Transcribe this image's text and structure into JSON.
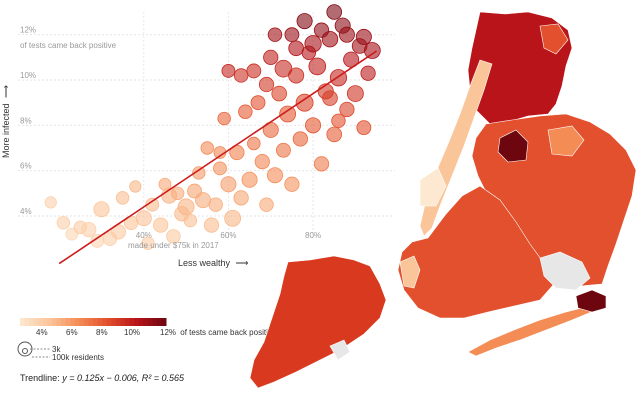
{
  "colors": {
    "scale": [
      "#fde8d2",
      "#fbc59a",
      "#f48c56",
      "#e2502d",
      "#b8141a",
      "#6e0610"
    ],
    "trendline": "#cc1d1d",
    "gridline": "#e6e6e6",
    "map_no_data": "#e7e7e7"
  },
  "chart_data": {
    "type": "scatter",
    "y_axis": {
      "label": "More infected",
      "arrow": "⟶",
      "ticks": [
        4,
        6,
        8,
        10,
        12
      ],
      "tick_labels": [
        "4%",
        "6%",
        "8%",
        "10%",
        "12%"
      ],
      "top_tick_note": "of tests came back positive",
      "range": [
        2.5,
        13
      ]
    },
    "x_axis": {
      "label": "Less wealthy",
      "arrow": "⟶",
      "ticks": [
        40,
        60,
        80
      ],
      "tick_labels": [
        "40%",
        "60%",
        "80%"
      ],
      "first_tick_note": "made under $75k in 2017",
      "range": [
        15,
        97
      ]
    },
    "grid": true,
    "trendline": {
      "text_prefix": "Trendline: ",
      "equation": "y = 0.125x − 0.006, R² = 0.565",
      "slope": 0.125,
      "intercept": -0.006
    },
    "points": [
      {
        "x": 18,
        "y": 4.6,
        "v": 4.4,
        "s": 0.2
      },
      {
        "x": 21,
        "y": 3.7,
        "v": 4.5,
        "s": 0.3
      },
      {
        "x": 23,
        "y": 3.2,
        "v": 4.0,
        "s": 0.25
      },
      {
        "x": 25,
        "y": 3.5,
        "v": 4.6,
        "s": 0.3
      },
      {
        "x": 27,
        "y": 3.4,
        "v": 4.4,
        "s": 0.5
      },
      {
        "x": 29,
        "y": 2.9,
        "v": 4.2,
        "s": 0.35
      },
      {
        "x": 30,
        "y": 4.3,
        "v": 5.0,
        "s": 0.6
      },
      {
        "x": 32,
        "y": 3.0,
        "v": 4.5,
        "s": 0.4
      },
      {
        "x": 34,
        "y": 3.3,
        "v": 4.7,
        "s": 0.5
      },
      {
        "x": 35,
        "y": 4.8,
        "v": 5.2,
        "s": 0.3
      },
      {
        "x": 37,
        "y": 3.7,
        "v": 5.0,
        "s": 0.4
      },
      {
        "x": 38,
        "y": 5.3,
        "v": 5.5,
        "s": 0.2
      },
      {
        "x": 40,
        "y": 3.9,
        "v": 5.1,
        "s": 0.6
      },
      {
        "x": 41,
        "y": 2.8,
        "v": 4.6,
        "s": 0.3
      },
      {
        "x": 42,
        "y": 4.5,
        "v": 5.3,
        "s": 0.35
      },
      {
        "x": 44,
        "y": 3.6,
        "v": 5.0,
        "s": 0.5
      },
      {
        "x": 45,
        "y": 5.4,
        "v": 6.0,
        "s": 0.25
      },
      {
        "x": 46,
        "y": 4.9,
        "v": 5.6,
        "s": 0.6
      },
      {
        "x": 47,
        "y": 3.1,
        "v": 4.8,
        "s": 0.4
      },
      {
        "x": 48,
        "y": 5.0,
        "v": 5.8,
        "s": 0.3
      },
      {
        "x": 49,
        "y": 4.1,
        "v": 5.4,
        "s": 0.5
      },
      {
        "x": 50,
        "y": 4.4,
        "v": 5.6,
        "s": 0.7
      },
      {
        "x": 51,
        "y": 3.8,
        "v": 5.2,
        "s": 0.3
      },
      {
        "x": 52,
        "y": 5.1,
        "v": 6.2,
        "s": 0.45
      },
      {
        "x": 53,
        "y": 5.9,
        "v": 6.5,
        "s": 0.3
      },
      {
        "x": 54,
        "y": 4.7,
        "v": 5.9,
        "s": 0.6
      },
      {
        "x": 55,
        "y": 7.0,
        "v": 7.0,
        "s": 0.3
      },
      {
        "x": 56,
        "y": 3.6,
        "v": 5.3,
        "s": 0.5
      },
      {
        "x": 57,
        "y": 4.5,
        "v": 5.8,
        "s": 0.4
      },
      {
        "x": 58,
        "y": 6.1,
        "v": 6.8,
        "s": 0.35
      },
      {
        "x": 59,
        "y": 8.3,
        "v": 8.2,
        "s": 0.3
      },
      {
        "x": 60,
        "y": 5.4,
        "v": 6.4,
        "s": 0.6
      },
      {
        "x": 61,
        "y": 3.9,
        "v": 5.5,
        "s": 0.7
      },
      {
        "x": 62,
        "y": 6.8,
        "v": 7.4,
        "s": 0.5
      },
      {
        "x": 63,
        "y": 4.8,
        "v": 6.1,
        "s": 0.5
      },
      {
        "x": 64,
        "y": 8.6,
        "v": 8.6,
        "s": 0.4
      },
      {
        "x": 65,
        "y": 5.6,
        "v": 6.8,
        "s": 0.6
      },
      {
        "x": 66,
        "y": 7.2,
        "v": 7.8,
        "s": 0.3
      },
      {
        "x": 67,
        "y": 9.0,
        "v": 9.0,
        "s": 0.45
      },
      {
        "x": 68,
        "y": 6.4,
        "v": 7.2,
        "s": 0.5
      },
      {
        "x": 69,
        "y": 4.5,
        "v": 6.0,
        "s": 0.4
      },
      {
        "x": 70,
        "y": 7.8,
        "v": 8.2,
        "s": 0.6
      },
      {
        "x": 71,
        "y": 5.8,
        "v": 7.0,
        "s": 0.6
      },
      {
        "x": 72,
        "y": 9.4,
        "v": 9.4,
        "s": 0.55
      },
      {
        "x": 73,
        "y": 6.9,
        "v": 7.8,
        "s": 0.45
      },
      {
        "x": 74,
        "y": 8.5,
        "v": 8.8,
        "s": 0.7
      },
      {
        "x": 75,
        "y": 5.4,
        "v": 6.8,
        "s": 0.5
      },
      {
        "x": 76,
        "y": 10.2,
        "v": 10.0,
        "s": 0.6
      },
      {
        "x": 77,
        "y": 7.4,
        "v": 8.3,
        "s": 0.5
      },
      {
        "x": 78,
        "y": 9.0,
        "v": 9.4,
        "s": 0.85
      },
      {
        "x": 79,
        "y": 11.2,
        "v": 11.0,
        "s": 0.4
      },
      {
        "x": 80,
        "y": 8.0,
        "v": 8.8,
        "s": 0.6
      },
      {
        "x": 81,
        "y": 10.6,
        "v": 10.6,
        "s": 0.8
      },
      {
        "x": 82,
        "y": 6.3,
        "v": 7.6,
        "s": 0.5
      },
      {
        "x": 83,
        "y": 9.5,
        "v": 9.8,
        "s": 0.6
      },
      {
        "x": 84,
        "y": 11.8,
        "v": 11.6,
        "s": 0.65
      },
      {
        "x": 85,
        "y": 7.6,
        "v": 8.6,
        "s": 0.55
      },
      {
        "x": 86,
        "y": 10.1,
        "v": 10.4,
        "s": 0.75
      },
      {
        "x": 87,
        "y": 12.4,
        "v": 12.2,
        "s": 0.6
      },
      {
        "x": 88,
        "y": 8.7,
        "v": 9.4,
        "s": 0.5
      },
      {
        "x": 89,
        "y": 10.9,
        "v": 11.0,
        "s": 0.6
      },
      {
        "x": 90,
        "y": 9.4,
        "v": 10.0,
        "s": 0.7
      },
      {
        "x": 91,
        "y": 11.5,
        "v": 11.6,
        "s": 0.55
      },
      {
        "x": 92,
        "y": 7.9,
        "v": 9.0,
        "s": 0.45
      },
      {
        "x": 93,
        "y": 10.3,
        "v": 10.8,
        "s": 0.5
      },
      {
        "x": 94,
        "y": 11.3,
        "v": 11.5,
        "s": 0.7
      },
      {
        "x": 75,
        "y": 12.0,
        "v": 11.8,
        "s": 0.45
      },
      {
        "x": 78,
        "y": 12.6,
        "v": 12.4,
        "s": 0.6
      },
      {
        "x": 82,
        "y": 12.2,
        "v": 12.0,
        "s": 0.5
      },
      {
        "x": 85,
        "y": 13.0,
        "v": 12.6,
        "s": 0.55
      },
      {
        "x": 70,
        "y": 11.0,
        "v": 10.6,
        "s": 0.5
      },
      {
        "x": 66,
        "y": 10.4,
        "v": 10.2,
        "s": 0.45
      },
      {
        "x": 63,
        "y": 10.2,
        "v": 10.0,
        "s": 0.4
      },
      {
        "x": 60,
        "y": 10.4,
        "v": 10.4,
        "s": 0.35
      },
      {
        "x": 73,
        "y": 10.5,
        "v": 10.3,
        "s": 0.8
      },
      {
        "x": 88,
        "y": 12.0,
        "v": 11.8,
        "s": 0.6
      },
      {
        "x": 80,
        "y": 11.6,
        "v": 11.4,
        "s": 0.75
      },
      {
        "x": 76,
        "y": 11.4,
        "v": 11.2,
        "s": 0.55
      },
      {
        "x": 69,
        "y": 9.8,
        "v": 9.8,
        "s": 0.5
      },
      {
        "x": 58,
        "y": 6.8,
        "v": 7.2,
        "s": 0.25
      },
      {
        "x": 86,
        "y": 8.2,
        "v": 9.0,
        "s": 0.4
      },
      {
        "x": 92,
        "y": 11.9,
        "v": 11.8,
        "s": 0.6
      },
      {
        "x": 84,
        "y": 9.2,
        "v": 9.6,
        "s": 0.55
      },
      {
        "x": 71,
        "y": 12.0,
        "v": 11.6,
        "s": 0.4
      }
    ]
  },
  "legend": {
    "color_labels": [
      "4%",
      "6%",
      "8%",
      "10%",
      "12%"
    ],
    "color_suffix": "of tests came back positive",
    "size_small_label": "3k",
    "size_large_label": "100k residents"
  }
}
